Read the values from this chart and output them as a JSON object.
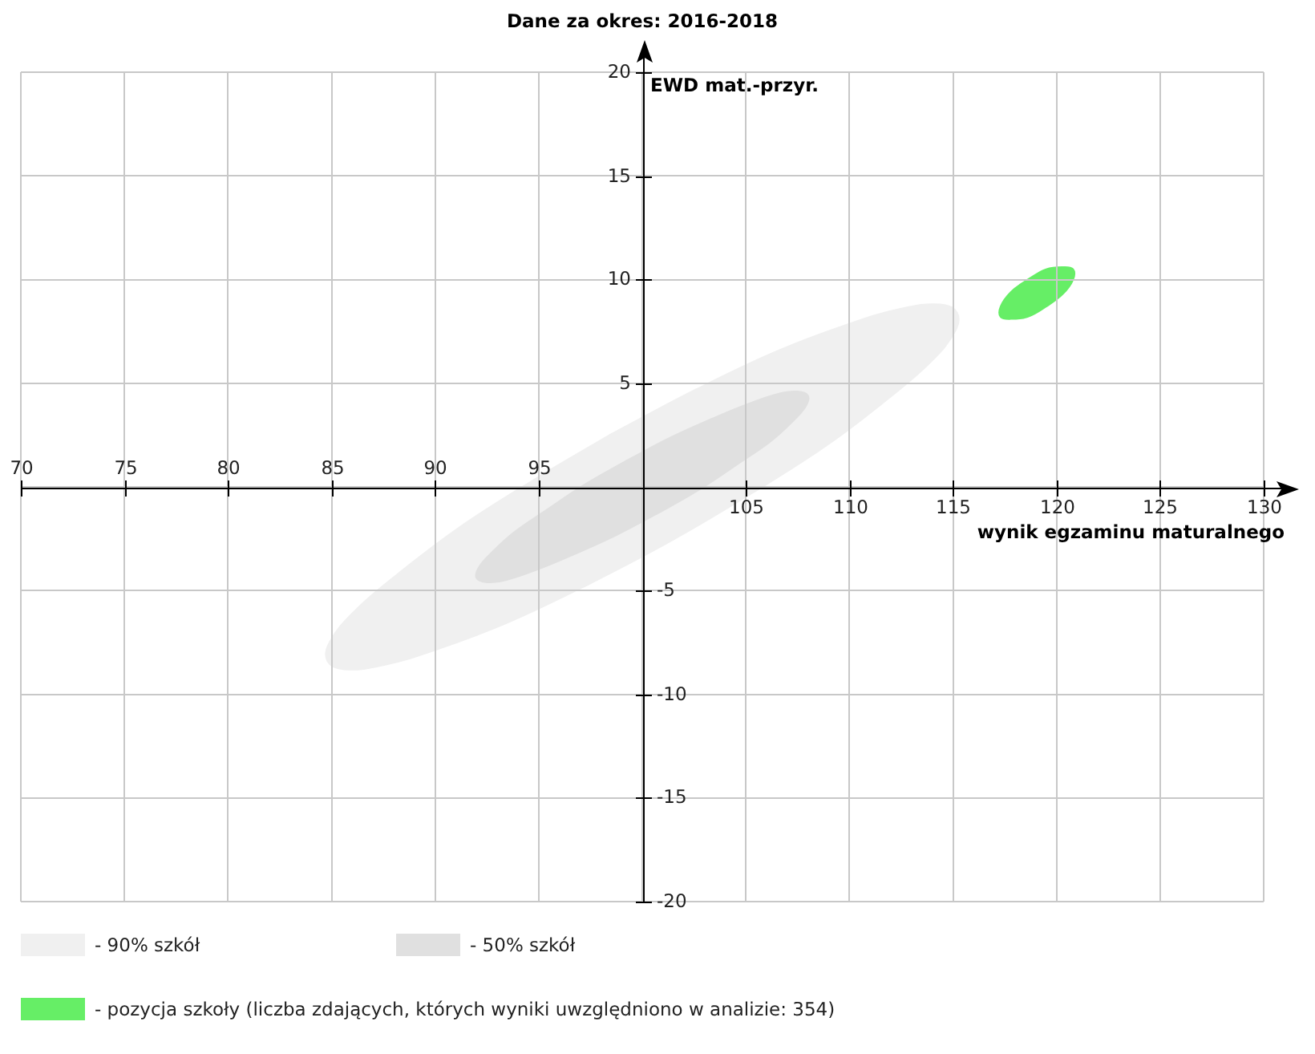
{
  "chart_data": {
    "type": "area",
    "title": "Dane za okres: 2016-2018",
    "xlabel": "wynik egzaminu maturalnego",
    "ylabel": "EWD mat.-przyr.",
    "xlim": [
      70,
      130
    ],
    "xticks": [
      {
        "value": 100,
        "label": null
      },
      105,
      110,
      115,
      120,
      125,
      130
    ],
    "x2lim": [
      70,
      130
    ],
    "x2ticks": [
      70,
      75,
      80,
      85,
      90,
      95
    ],
    "ylim": [
      -20,
      20
    ],
    "yticks": [
      -20,
      -15,
      -10,
      -5,
      {
        "value": 0,
        "label": null
      }
    ],
    "y2lim": [
      -20,
      20
    ],
    "y2ticks": [
      5,
      10,
      15,
      20
    ],
    "grid": true,
    "legend": "bottom",
    "series": [
      {
        "name": "- 90% szkół",
        "color": "#f0f0f0",
        "x": [
          98.6,
          94.7,
          91.1,
          88.2,
          86.1,
          84.9,
          84.8,
          85.6,
          87.5,
          90.2,
          93.6,
          97.4,
          101.4,
          105.3,
          108.9,
          111.8,
          113.9,
          115.1,
          115.2,
          114.4,
          112.5,
          109.8,
          106.4,
          102.6,
          98.6
        ],
        "values": [
          2.6,
          0.3,
          -2.0,
          -4.2,
          -6.0,
          -7.5,
          -8.4,
          -8.8,
          -8.6,
          -7.8,
          -6.5,
          -4.7,
          -2.6,
          -0.3,
          2.0,
          4.2,
          6.0,
          7.5,
          8.4,
          8.8,
          8.6,
          7.8,
          6.5,
          4.7,
          2.6
        ]
      },
      {
        "name": "- 50% szkół",
        "color": "#e0e0e0",
        "x": [
          99.3,
          97.2,
          95.4,
          93.8,
          92.7,
          92.1,
          92.0,
          92.5,
          93.4,
          94.9,
          96.6,
          98.6,
          100.7,
          102.8,
          104.6,
          106.2,
          107.3,
          107.9,
          108.0,
          107.5,
          106.6,
          105.1,
          103.4,
          101.4,
          99.3
        ],
        "values": [
          1.3,
          0.1,
          -1.1,
          -2.2,
          -3.2,
          -3.9,
          -4.4,
          -4.6,
          -4.5,
          -4.0,
          -3.3,
          -2.4,
          -1.3,
          -0.1,
          1.1,
          2.2,
          3.2,
          3.9,
          4.4,
          4.6,
          4.5,
          4.0,
          3.3,
          2.4,
          1.3
        ]
      },
      {
        "name": "- pozycja szkoły (liczba zdających, których wyniki uwzględniono w analizie: 354)",
        "color": "#66ee66",
        "x": [
          118.6,
          117.8,
          117.3,
          117.3,
          117.8,
          118.6,
          119.5,
          120.3,
          120.8,
          120.8,
          120.3,
          119.5,
          118.6
        ],
        "values": [
          10.0,
          9.4,
          8.7,
          8.2,
          8.1,
          8.2,
          8.7,
          9.3,
          10.0,
          10.5,
          10.6,
          10.5,
          10.0
        ]
      }
    ]
  }
}
